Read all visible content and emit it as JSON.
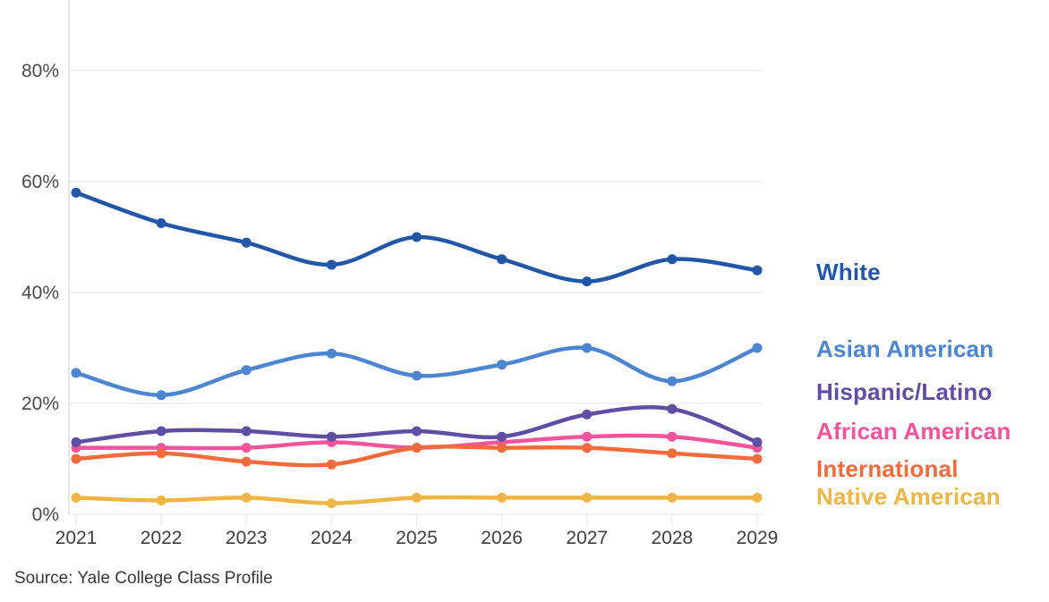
{
  "chart_data": {
    "type": "line",
    "source": "Source: Yale College Class Profile",
    "categories": [
      "2021",
      "2022",
      "2023",
      "2024",
      "2025",
      "2026",
      "2027",
      "2028",
      "2029"
    ],
    "y_ticks": [
      0,
      20,
      40,
      60,
      80
    ],
    "y_tick_labels": [
      "0%",
      "20%",
      "40%",
      "60%",
      "80%"
    ],
    "ylim": [
      0,
      93
    ],
    "grid": true,
    "legend_position": "right",
    "series": [
      {
        "name": "White",
        "color": "#2257A8",
        "values": [
          58,
          52.5,
          49,
          45,
          50,
          46,
          42,
          46,
          44
        ]
      },
      {
        "name": "Asian American",
        "color": "#4C86D2",
        "values": [
          25.5,
          21.5,
          26,
          29,
          25,
          27,
          30,
          24,
          30
        ]
      },
      {
        "name": "Hispanic/Latino",
        "color": "#5E4FA5",
        "values": [
          13,
          15,
          15,
          14,
          15,
          14,
          18,
          19,
          13
        ]
      },
      {
        "name": "African American",
        "color": "#F2549B",
        "values": [
          12,
          12,
          12,
          13,
          12,
          13,
          14,
          14,
          12
        ]
      },
      {
        "name": "International",
        "color": "#F16B3C",
        "values": [
          10,
          11,
          9.5,
          9,
          12,
          12,
          12,
          11,
          10
        ]
      },
      {
        "name": "Native American",
        "color": "#EFB545",
        "values": [
          3,
          2.5,
          3,
          2,
          3,
          3,
          3,
          3,
          3
        ]
      }
    ],
    "style": {
      "grid_color": "#ECECEC",
      "axis_color": "#DBDBDB",
      "y_label_color": "#4A4A4A",
      "x_label_color": "#3E3E3E"
    }
  }
}
